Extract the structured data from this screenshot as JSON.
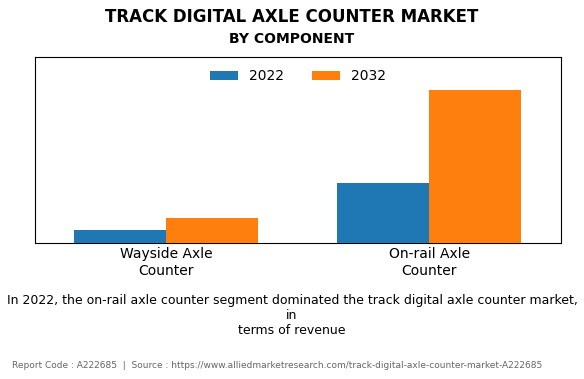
{
  "chart_data": {
    "type": "bar",
    "title": "TRACK DIGITAL AXLE COUNTER MARKET",
    "subtitle": "BY COMPONENT",
    "categories": [
      "Wayside Axle\nCounter",
      "On-rail Axle\nCounter"
    ],
    "series": [
      {
        "name": "2022",
        "values": [
          0.07,
          0.32
        ]
      },
      {
        "name": "2032",
        "values": [
          0.13,
          0.82
        ]
      }
    ],
    "ylim": [
      0,
      1.0
    ],
    "tick_labels": "x",
    "grid": false,
    "legend": "upper center",
    "annotations": [
      "In 2022, the on-rail axle counter segment dominated the track digital axle counter market, in\nterms of revenue",
      "Report Code : A222685  |  Source : https://www.alliedmarketresearch.com/track-digital-axle-counter-market-A222685"
    ]
  }
}
